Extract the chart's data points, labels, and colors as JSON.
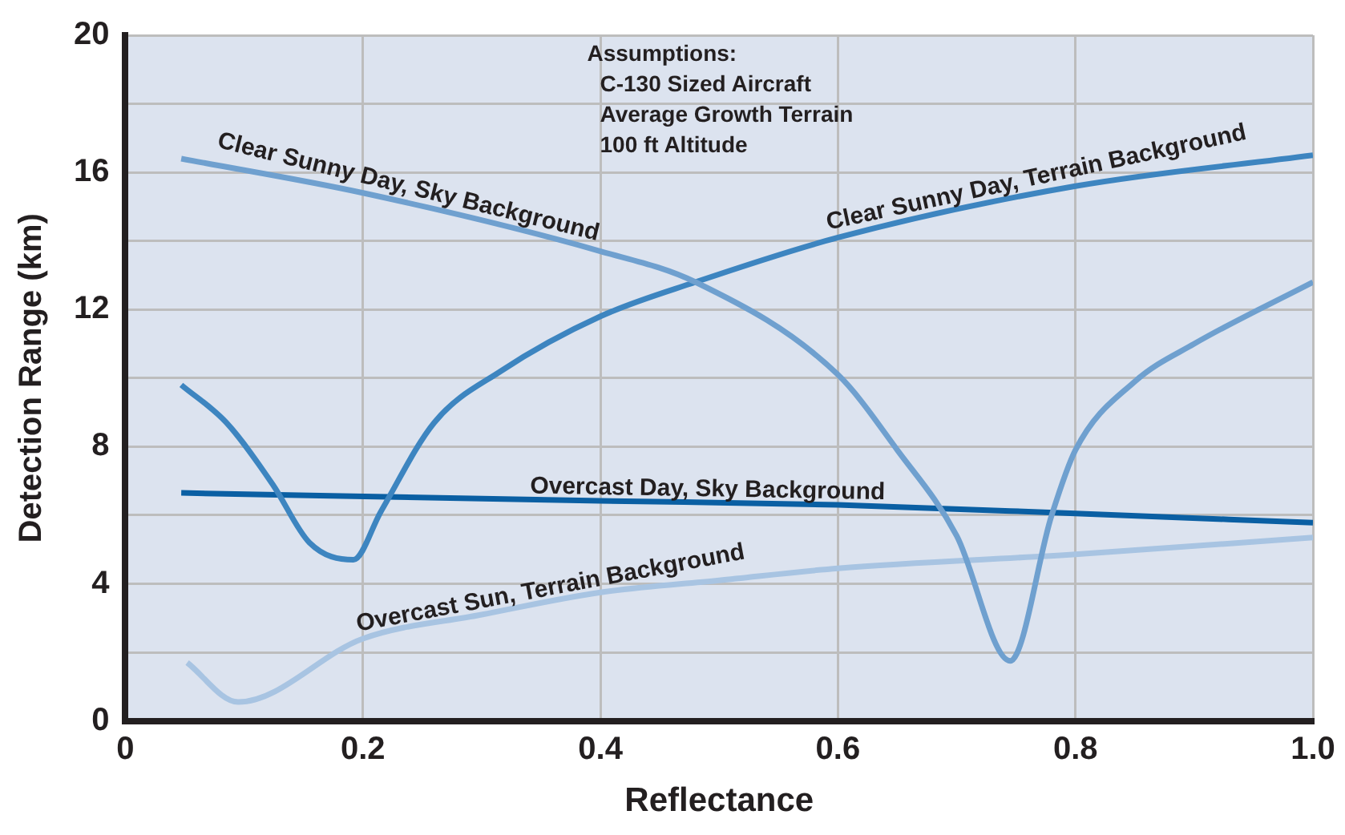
{
  "chart_data": {
    "type": "line",
    "xlabel": "Reflectance",
    "ylabel": "Detection Range (km)",
    "xlim": [
      0,
      1
    ],
    "xticks": [
      0,
      0.2,
      0.4,
      0.6,
      0.8,
      {
        "value": 1,
        "label": "1.0"
      }
    ],
    "ylim": [
      0,
      20
    ],
    "yticks": [
      0,
      {
        "value": 2,
        "label": null
      },
      4,
      {
        "value": 6,
        "label": null
      },
      8,
      {
        "value": 10,
        "label": null
      },
      12,
      {
        "value": 14,
        "label": null
      },
      16,
      {
        "value": 18,
        "label": null
      },
      20
    ],
    "grid": true,
    "legend": false,
    "annotations": [
      "Assumptions:",
      "C-130 Sized Aircraft",
      "Average Growth Terrain",
      "100 ft Altitude"
    ],
    "series": [
      {
        "name": "Clear Sunny Day, Sky Background",
        "color": "#6fa0cf",
        "x": [
          0.047,
          0.2,
          0.4,
          0.48,
          0.6,
          0.65,
          0.7,
          0.745,
          0.78,
          0.8,
          0.85,
          0.9,
          1.0
        ],
        "values": [
          16.4,
          15.4,
          13.7,
          12.8,
          10.1,
          7.9,
          5.4,
          1.75,
          6.0,
          7.9,
          9.9,
          11.0,
          12.8
        ]
      },
      {
        "name": "Clear Sunny Day, Terrain Background",
        "color": "#3d85c0",
        "x": [
          0.047,
          0.085,
          0.124,
          0.155,
          0.192,
          0.215,
          0.26,
          0.316,
          0.4,
          0.48,
          0.6,
          0.8,
          1.0
        ],
        "values": [
          9.8,
          8.7,
          6.9,
          5.2,
          4.7,
          6.1,
          8.7,
          10.2,
          11.8,
          12.8,
          14.1,
          15.6,
          16.5
        ]
      },
      {
        "name": "Overcast Day, Sky Background",
        "color": "#0a5fa3",
        "x": [
          0.047,
          0.4,
          0.6,
          0.8,
          1.0
        ],
        "values": [
          6.65,
          6.42,
          6.3,
          6.05,
          5.78
        ]
      },
      {
        "name": "Overcast Sun, Terrain Background",
        "color": "#a8c4e2",
        "x": [
          0.052,
          0.095,
          0.2,
          0.3,
          0.4,
          0.5,
          0.6,
          0.8,
          1.0
        ],
        "values": [
          1.7,
          0.55,
          2.4,
          3.1,
          3.75,
          4.1,
          4.45,
          4.86,
          5.35
        ]
      }
    ]
  }
}
